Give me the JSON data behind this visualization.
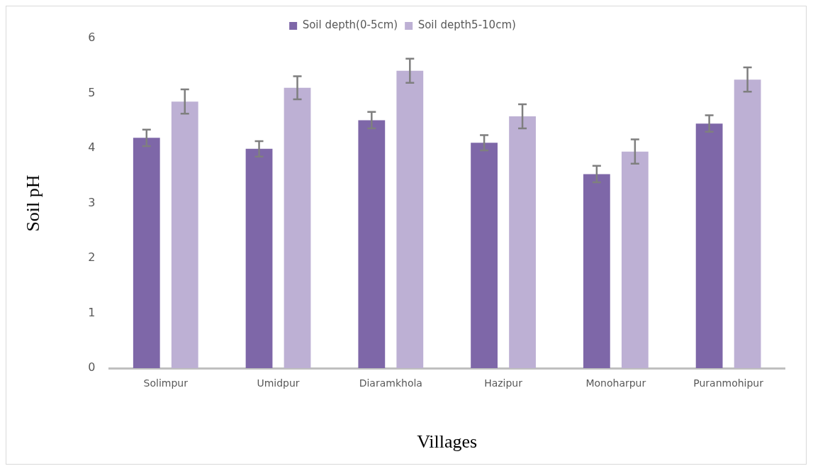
{
  "chart_data": {
    "type": "bar",
    "xlabel": "Villages",
    "ylabel": "Soil pH",
    "categories": [
      "Solimpur",
      "Umidpur",
      "Diaramkhola",
      "Hazipur",
      "Monoharpur",
      "Puranmohipur"
    ],
    "series": [
      {
        "name": "Soil depth(0-5cm)",
        "color": "#7e67a8",
        "values": [
          4.19,
          3.99,
          4.51,
          4.1,
          3.53,
          4.45
        ],
        "errors": [
          0.15,
          0.14,
          0.15,
          0.14,
          0.15,
          0.15
        ]
      },
      {
        "name": "Soil depth5-10cm)",
        "color": "#bdb0d4",
        "values": [
          4.85,
          5.1,
          5.41,
          4.58,
          3.94,
          5.25
        ],
        "errors": [
          0.22,
          0.21,
          0.22,
          0.22,
          0.22,
          0.22
        ]
      }
    ],
    "ylim": [
      0,
      6
    ],
    "yticks": [
      0,
      1,
      2,
      3,
      4,
      5,
      6
    ],
    "grid": false,
    "legend": "top"
  }
}
